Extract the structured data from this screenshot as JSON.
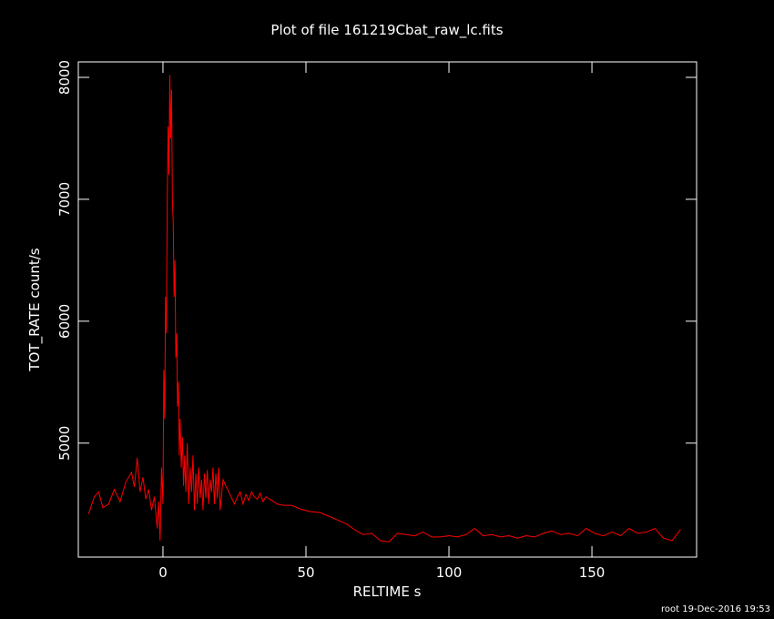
{
  "chart_data": {
    "type": "line",
    "title": "Plot of file 161219Cbat_raw_lc.fits",
    "xlabel": "RELTIME  s",
    "ylabel": "TOT_RATE  count/s",
    "footer": "root 19-Dec-2016 19:53",
    "color": "#ff0000",
    "xlim": [
      -29.6,
      186.6
    ],
    "ylim": [
      4065,
      8127
    ],
    "xticks": [
      0,
      50,
      100,
      150
    ],
    "yticks": [
      5000,
      6000,
      7000,
      8000
    ],
    "x": [
      -26,
      -24,
      -22.5,
      -21,
      -19,
      -17,
      -15,
      -13,
      -11,
      -10,
      -9,
      -8,
      -7,
      -6,
      -5,
      -4,
      -3,
      -2,
      -1.5,
      -1,
      -0.5,
      0,
      0.3,
      0.6,
      0.9,
      1.2,
      1.5,
      1.8,
      2.1,
      2.4,
      2.7,
      3.0,
      3.3,
      3.6,
      3.9,
      4.2,
      4.5,
      4.8,
      5.1,
      5.4,
      5.7,
      6.0,
      6.4,
      6.8,
      7.2,
      7.6,
      8,
      8.5,
      9,
      9.5,
      10,
      10.5,
      11,
      11.5,
      12,
      12.5,
      13,
      13.5,
      14,
      14.5,
      15,
      15.5,
      16,
      16.5,
      17,
      17.5,
      18,
      18.5,
      19,
      19.5,
      20,
      21,
      22,
      23,
      24,
      25,
      26,
      27,
      28,
      29,
      30,
      31,
      32,
      33,
      34,
      35,
      36,
      38,
      40,
      42,
      45,
      48,
      51,
      55,
      58,
      61,
      64,
      67,
      70,
      73,
      76,
      79,
      82,
      85,
      88,
      91,
      94,
      97,
      100,
      103,
      106,
      109,
      112,
      115,
      118,
      121,
      124,
      127,
      130,
      133,
      136,
      139,
      142,
      145,
      148,
      151,
      154,
      157,
      160,
      163,
      166,
      169,
      172,
      175,
      178,
      181
    ],
    "values": [
      4420,
      4560,
      4600,
      4470,
      4500,
      4620,
      4520,
      4680,
      4760,
      4640,
      4880,
      4600,
      4720,
      4540,
      4620,
      4450,
      4560,
      4300,
      4520,
      4200,
      4800,
      4500,
      5600,
      5200,
      6200,
      5900,
      7000,
      7600,
      7200,
      8020,
      7500,
      7900,
      7000,
      6800,
      6200,
      6500,
      5700,
      5900,
      5300,
      5500,
      4900,
      5200,
      4800,
      5050,
      4650,
      4900,
      4600,
      5000,
      4500,
      4800,
      4600,
      4900,
      4450,
      4750,
      4500,
      4800,
      4550,
      4700,
      4450,
      4750,
      4550,
      4780,
      4500,
      4700,
      4600,
      4800,
      4500,
      4750,
      4550,
      4800,
      4450,
      4700,
      4650,
      4600,
      4550,
      4500,
      4560,
      4600,
      4500,
      4580,
      4530,
      4600,
      4560,
      4540,
      4590,
      4520,
      4560,
      4530,
      4500,
      4490,
      4490,
      4460,
      4440,
      4430,
      4400,
      4370,
      4340,
      4290,
      4250,
      4260,
      4200,
      4190,
      4260,
      4250,
      4240,
      4270,
      4230,
      4230,
      4240,
      4230,
      4250,
      4300,
      4240,
      4250,
      4230,
      4240,
      4220,
      4240,
      4230,
      4260,
      4280,
      4250,
      4260,
      4240,
      4300,
      4260,
      4240,
      4270,
      4240,
      4300,
      4260,
      4270,
      4300,
      4220,
      4200,
      4290
    ]
  }
}
